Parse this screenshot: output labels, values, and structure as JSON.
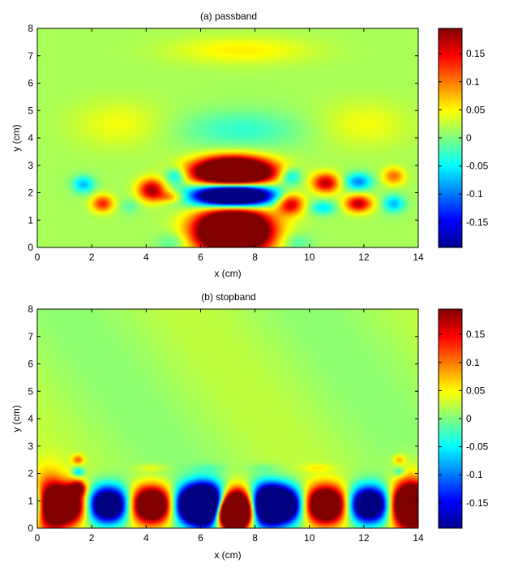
{
  "chart_data": [
    {
      "type": "heatmap",
      "title": "(a) passband",
      "xlabel": "x (cm)",
      "ylabel": "y (cm)",
      "xlim": [
        0,
        14
      ],
      "ylim": [
        0,
        8
      ],
      "xticks": [
        0,
        2,
        4,
        6,
        8,
        10,
        12,
        14
      ],
      "yticks": [
        0,
        1,
        2,
        3,
        4,
        5,
        6,
        7,
        8
      ],
      "colorbar": {
        "range": [
          -0.195,
          0.195
        ],
        "ticks": [
          -0.15,
          -0.1,
          -0.05,
          0,
          0.05,
          0.1,
          0.15
        ],
        "tick_labels": [
          "-0.15",
          "-0.1",
          "-0.05",
          "0",
          "0.05",
          "0.1",
          "0.15"
        ],
        "colormap": "jet"
      },
      "features": [
        {
          "x": 7.2,
          "y": 0.6,
          "value": 0.2
        },
        {
          "x": 7.2,
          "y": 1.9,
          "value": -0.2
        },
        {
          "x": 7.2,
          "y": 2.75,
          "value": 0.2
        },
        {
          "x": 4.2,
          "y": 2.1,
          "value": 0.15
        },
        {
          "x": 5.1,
          "y": 2.6,
          "value": -0.08
        },
        {
          "x": 2.4,
          "y": 1.6,
          "value": 0.1
        },
        {
          "x": 1.7,
          "y": 2.3,
          "value": -0.08
        },
        {
          "x": 9.3,
          "y": 1.6,
          "value": 0.15
        },
        {
          "x": 9.3,
          "y": 2.6,
          "value": -0.08
        },
        {
          "x": 10.6,
          "y": 2.35,
          "value": 0.15
        },
        {
          "x": 10.5,
          "y": 1.45,
          "value": -0.06
        },
        {
          "x": 11.8,
          "y": 1.6,
          "value": 0.15
        },
        {
          "x": 11.8,
          "y": 2.4,
          "value": -0.1
        },
        {
          "x": 13.1,
          "y": 2.6,
          "value": 0.08
        },
        {
          "x": 13.1,
          "y": 1.6,
          "value": -0.08
        },
        {
          "x": 7.5,
          "y": 4.3,
          "value": -0.04
        },
        {
          "x": 7.5,
          "y": 7.2,
          "value": 0.06
        }
      ]
    },
    {
      "type": "heatmap",
      "title": "(b) stopband",
      "xlabel": "x (cm)",
      "ylabel": "y (cm)",
      "xlim": [
        0,
        14
      ],
      "ylim": [
        0,
        8
      ],
      "xticks": [
        0,
        2,
        4,
        6,
        8,
        10,
        12,
        14
      ],
      "yticks": [
        0,
        1,
        2,
        3,
        4,
        5,
        6,
        7,
        8
      ],
      "colorbar": {
        "range": [
          -0.195,
          0.195
        ],
        "ticks": [
          -0.15,
          -0.1,
          -0.05,
          0,
          0.05,
          0.1,
          0.15
        ],
        "tick_labels": [
          "-0.15",
          "-0.1",
          "-0.05",
          "0",
          "0.05",
          "0.1",
          "0.15"
        ],
        "colormap": "jet"
      },
      "features": [
        {
          "x": 0.5,
          "y": 0.8,
          "value": 0.13
        },
        {
          "x": 1.5,
          "y": 1.4,
          "value": 0.17
        },
        {
          "x": 1.5,
          "y": 2.5,
          "value": 0.08
        },
        {
          "x": 1.5,
          "y": 2.0,
          "value": -0.08
        },
        {
          "x": 2.6,
          "y": 0.9,
          "value": -0.2
        },
        {
          "x": 4.2,
          "y": 0.9,
          "value": 0.2
        },
        {
          "x": 5.4,
          "y": 0.9,
          "value": -0.2
        },
        {
          "x": 6.3,
          "y": 0.9,
          "value": -0.2
        },
        {
          "x": 7.2,
          "y": 0.55,
          "value": 0.2
        },
        {
          "x": 8.4,
          "y": 0.9,
          "value": -0.2
        },
        {
          "x": 10.2,
          "y": 1.0,
          "value": 0.2
        },
        {
          "x": 11.9,
          "y": 0.9,
          "value": -0.18
        },
        {
          "x": 13.6,
          "y": 0.8,
          "value": 0.13
        },
        {
          "x": 13.3,
          "y": 2.5,
          "value": 0.06
        },
        {
          "x": 13.3,
          "y": 2.0,
          "value": -0.06
        }
      ]
    }
  ]
}
